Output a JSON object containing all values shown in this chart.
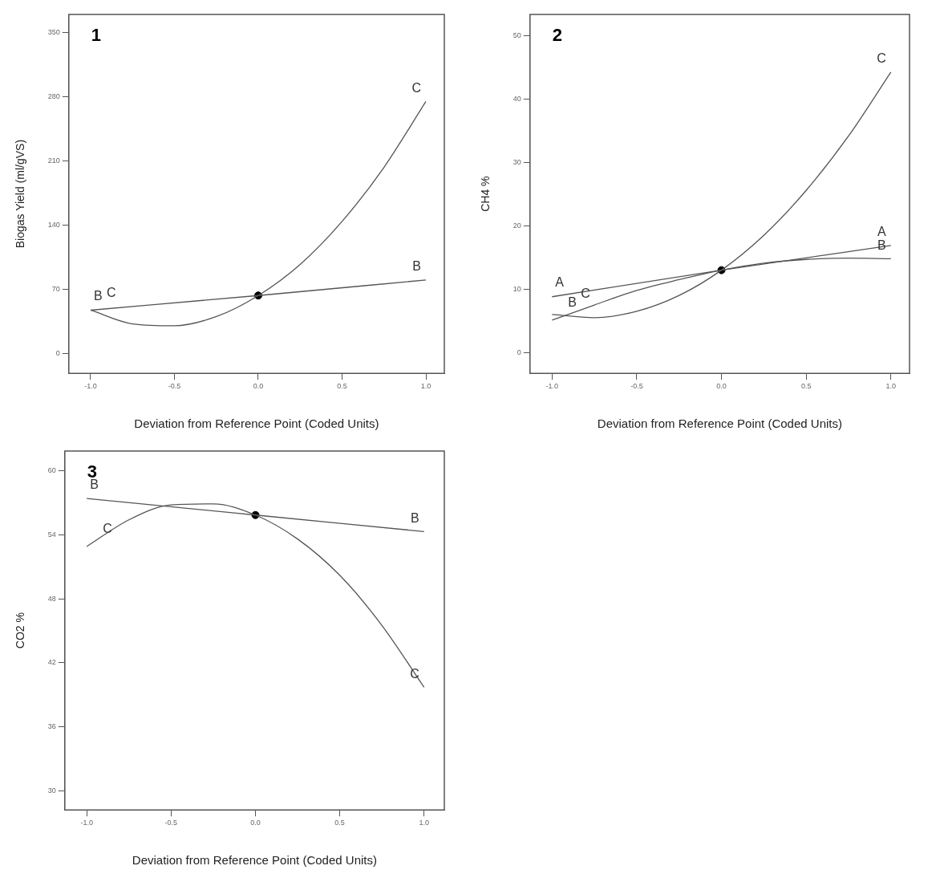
{
  "chart_data": [
    {
      "type": "line",
      "title": "1",
      "xlabel": "Deviation from Reference Point (Coded Units)",
      "ylabel": "Biogas Yield (ml/gVS)",
      "x": [
        -1,
        -0.75,
        -0.5,
        -0.25,
        0,
        0.25,
        0.5,
        0.75,
        1
      ],
      "xlim": [
        -1.13,
        1.11
      ],
      "xticks": [
        {
          "value": -1,
          "label": "-1.0"
        },
        {
          "value": -0.5,
          "label": "-0.5"
        },
        {
          "value": 0,
          "label": "0.0"
        },
        {
          "value": 0.5,
          "label": "0.5"
        },
        {
          "value": 1,
          "label": "1.0"
        }
      ],
      "ylim": [
        -22,
        370
      ],
      "yticks": [
        0,
        70,
        140,
        210,
        280,
        350
      ],
      "marker": "none",
      "legend": false,
      "grid": false,
      "series": [
        {
          "name": "B",
          "color": "#555555",
          "x": [
            -1,
            0,
            1
          ],
          "values": [
            47,
            63,
            80
          ]
        },
        {
          "name": "C",
          "color": "#555555",
          "values": [
            47,
            32,
            30,
            40,
            63,
            97,
            144,
            203,
            275
          ]
        },
        {
          "type": "scatter",
          "marker": "circle",
          "color": "#000000",
          "x": [
            0
          ],
          "values": [
            63
          ]
        }
      ]
    },
    {
      "type": "line",
      "title": "2",
      "xlabel": "Deviation from Reference Point (Coded Units)",
      "ylabel": "CH4 %",
      "x": [
        -1,
        -0.75,
        -0.5,
        -0.25,
        0,
        0.25,
        0.5,
        0.75,
        1
      ],
      "xlim": [
        -1.13,
        1.11
      ],
      "xticks": [
        {
          "value": -1,
          "label": "-1.0"
        },
        {
          "value": -0.5,
          "label": "-0.5"
        },
        {
          "value": 0,
          "label": "0.0"
        },
        {
          "value": 0.5,
          "label": "0.5"
        },
        {
          "value": 1,
          "label": "1.0"
        }
      ],
      "ylim": [
        -3.3,
        53.4
      ],
      "yticks": [
        0,
        10,
        20,
        30,
        40,
        50
      ],
      "marker": "none",
      "legend": false,
      "grid": false,
      "series": [
        {
          "name": "A",
          "color": "#555555",
          "x": [
            -1,
            0,
            1
          ],
          "values": [
            8.8,
            13,
            16.9
          ]
        },
        {
          "name": "B",
          "color": "#555555",
          "values": [
            5.1,
            7.5,
            9.8,
            11.5,
            13,
            14.1,
            14.7,
            14.9,
            14.8
          ]
        },
        {
          "name": "C",
          "color": "#555555",
          "values": [
            6,
            5.5,
            6.5,
            9,
            13,
            18.5,
            25.6,
            34.2,
            44.3
          ]
        },
        {
          "type": "scatter",
          "marker": "circle",
          "color": "#000000",
          "x": [
            0
          ],
          "values": [
            13
          ]
        }
      ]
    },
    {
      "type": "line",
      "title": "3",
      "xlabel": "Deviation from Reference Point (Coded Units)",
      "ylabel": "CO2 %",
      "x": [
        -1,
        -0.75,
        -0.5,
        -0.25,
        0,
        0.25,
        0.5,
        0.75,
        1
      ],
      "xlim": [
        -1.13,
        1.12
      ],
      "xticks": [
        {
          "value": -1,
          "label": "-1.0"
        },
        {
          "value": -0.5,
          "label": "-0.5"
        },
        {
          "value": 0,
          "label": "0.0"
        },
        {
          "value": 0.5,
          "label": "0.5"
        },
        {
          "value": 1,
          "label": "1.0"
        }
      ],
      "ylim": [
        28.2,
        61.85
      ],
      "yticks": [
        30,
        36,
        42,
        48,
        54,
        60
      ],
      "marker": "none",
      "legend": false,
      "grid": false,
      "series": [
        {
          "name": "B",
          "color": "#555555",
          "x": [
            -1,
            0,
            1
          ],
          "values": [
            57.4,
            55.85,
            54.3
          ]
        },
        {
          "name": "C",
          "color": "#555555",
          "values": [
            52.9,
            55.4,
            56.8,
            56.9,
            55.85,
            53.6,
            50.2,
            45.5,
            39.7
          ]
        },
        {
          "type": "scatter",
          "marker": "circle",
          "color": "#000000",
          "x": [
            0
          ],
          "values": [
            55.85
          ]
        }
      ]
    }
  ]
}
